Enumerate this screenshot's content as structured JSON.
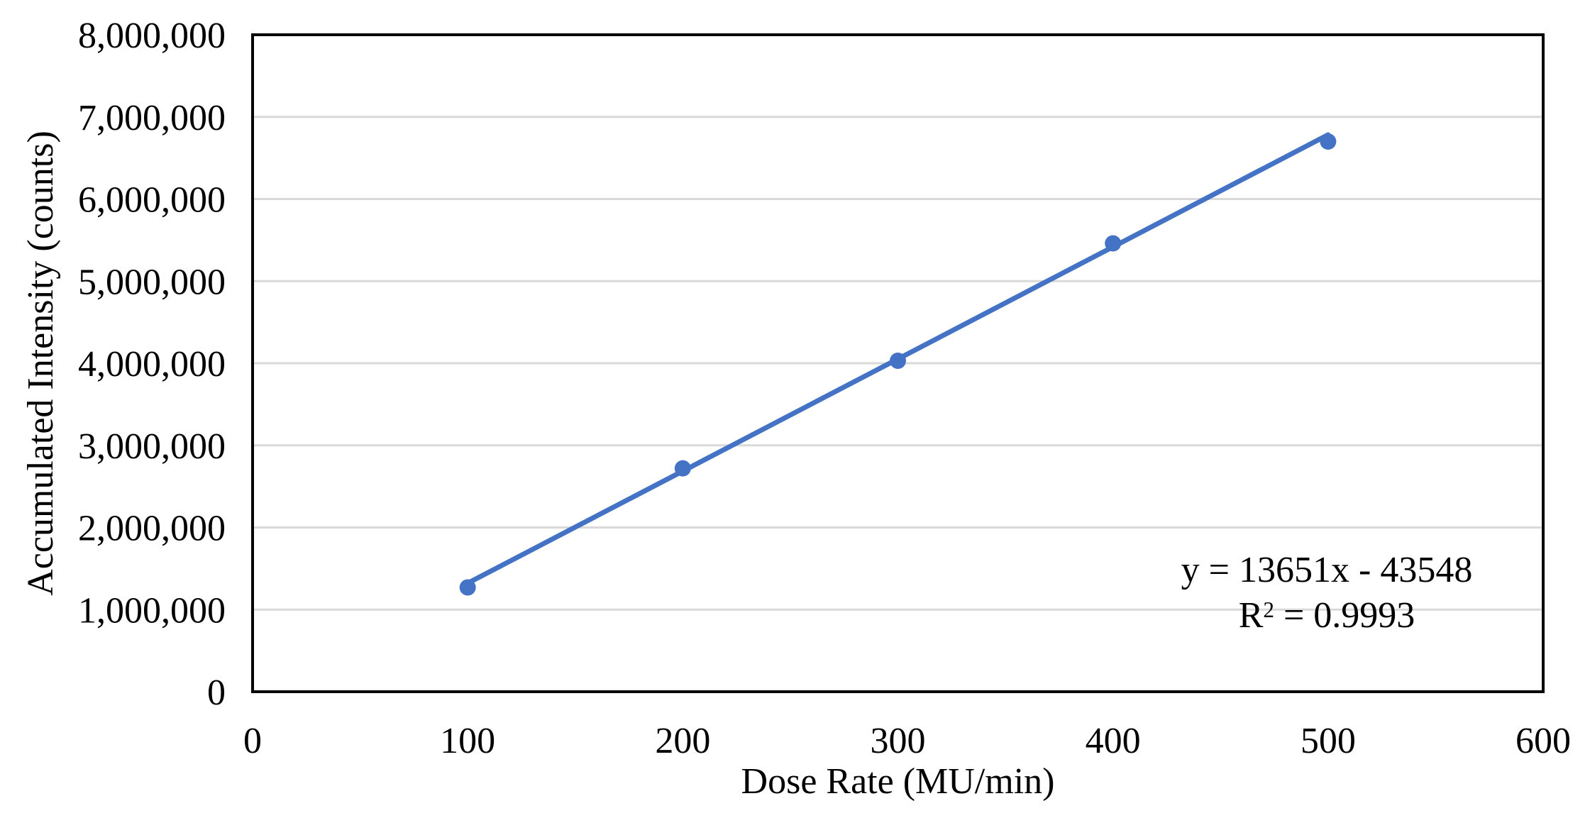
{
  "figure": {
    "background": "#ffffff"
  },
  "chart_data": {
    "type": "scatter",
    "title": "",
    "xlabel": "Dose Rate (MU/min)",
    "ylabel": "Accumulated Intensity (counts)",
    "x": [
      100,
      200,
      300,
      400,
      500
    ],
    "y": [
      1270000,
      2720000,
      4030000,
      5460000,
      6700000
    ],
    "xlim": [
      0,
      600
    ],
    "ylim": [
      0,
      8000000
    ],
    "x_ticks": [
      0,
      100,
      200,
      300,
      400,
      500,
      600
    ],
    "x_tick_labels": [
      "0",
      "100",
      "200",
      "300",
      "400",
      "500",
      "600"
    ],
    "y_ticks": [
      0,
      1000000,
      2000000,
      3000000,
      4000000,
      5000000,
      6000000,
      7000000,
      8000000
    ],
    "y_tick_labels": [
      "0",
      "1,000,000",
      "2,000,000",
      "3,000,000",
      "4,000,000",
      "5,000,000",
      "6,000,000",
      "7,000,000",
      "8,000,000"
    ],
    "grid": "horizontal",
    "legend": "none",
    "trendline": {
      "slope": 13651,
      "intercept": -43548,
      "equation_text": "y = 13651x - 43548",
      "r_squared_text": "R² = 0.9993",
      "r_base": "R",
      "r_sup": "2",
      "r_rest": " = 0.9993"
    },
    "colors": {
      "series": "#4472C4",
      "gridline": "#D9D9D9",
      "axis": "#000000",
      "text": "#000000"
    }
  }
}
